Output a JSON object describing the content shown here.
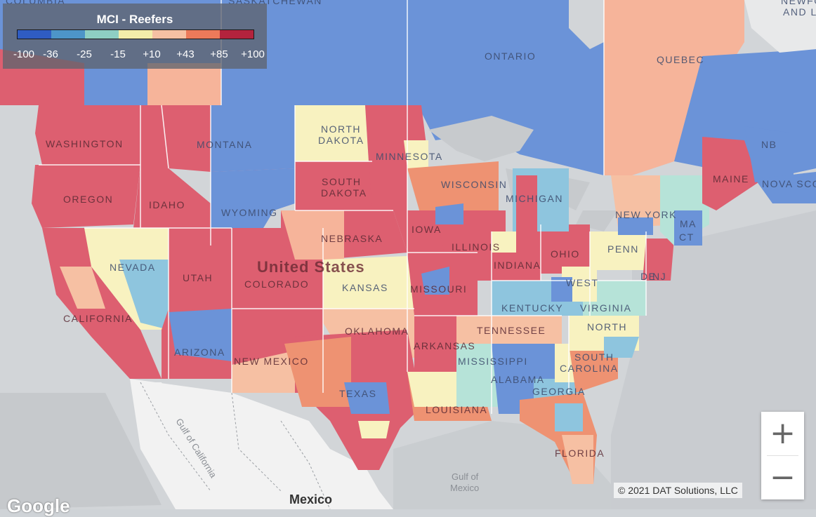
{
  "legend": {
    "title": "MCI - Reefers",
    "colors": [
      "#2f5cc2",
      "#4d95c8",
      "#8ecfc3",
      "#f4eeaa",
      "#f6c0a3",
      "#ec7a5a",
      "#b3233d"
    ],
    "ticks": [
      "-100",
      "-36",
      "-25",
      "-15",
      "+10",
      "+43",
      "+85",
      "+100"
    ]
  },
  "region_colors": {
    "deep_blue": "#6b93d8",
    "light_blue": "#8ec5de",
    "teal": "#b6e3d8",
    "yellow": "#f8f2c0",
    "peach": "#f6b49a",
    "salmon": "#ee9272",
    "red": "#dd5f70"
  },
  "labels": {
    "ontario": "ONTARIO",
    "quebec": "QUEBEC",
    "washington": "WASHINGTON",
    "oregon": "OREGON",
    "idaho": "IDAHO",
    "montana": "MONTANA",
    "wyoming": "WYOMING",
    "north_dakota_1": "NORTH",
    "north_dakota_2": "DAKOTA",
    "south_dakota_1": "SOUTH",
    "south_dakota_2": "DAKOTA",
    "minnesota": "MINNESOTA",
    "wisconsin": "WISCONSIN",
    "michigan": "MICHIGAN",
    "iowa": "IOWA",
    "nebraska": "NEBRASKA",
    "nevada": "NEVADA",
    "utah": "UTAH",
    "colorado": "COLORADO",
    "kansas": "KANSAS",
    "california": "CALIFORNIA",
    "arizona": "ARIZONA",
    "new_mexico": "NEW MEXICO",
    "oklahoma": "OKLAHOMA",
    "texas": "TEXAS",
    "missouri": "MISSOURI",
    "illinois": "ILLINOIS",
    "indiana": "INDIANA",
    "ohio": "OHIO",
    "kentucky": "KENTUCKY",
    "tennessee": "TENNESSEE",
    "arkansas": "ARKANSAS",
    "mississippi": "MISSISSIPPI",
    "louisiana": "LOUISIANA",
    "alabama": "ALABAMA",
    "georgia": "GEORGIA",
    "florida": "FLORIDA",
    "south_carolina_1": "SOUTH",
    "south_carolina_2": "CAROLINA",
    "north_carolina": "NORTH",
    "virginia": "VIRGINIA",
    "west_virginia": "WEST",
    "penn": "PENN",
    "new_york": "NEW YORK",
    "maine": "MAINE",
    "nova_scotia": "NOVA SCO",
    "nb": "NB",
    "ma": "MA",
    "ct": "CT",
    "nj": "NJ",
    "de": "DE",
    "united_states": "United States",
    "gulf_california": "Gulf of California",
    "gulf_mexico_1": "Gulf of",
    "gulf_mexico_2": "Mexico",
    "mexico": "Mexico",
    "saskatchewan": "SASKATCHEWAN",
    "colombia": "COLUMBIA",
    "newfoundland_1": "NEWFO",
    "newfoundland_2": "AND L"
  },
  "zoom": {
    "in": "+",
    "out": "−"
  },
  "copyright": "© 2021 DAT Solutions, LLC",
  "google": "Google"
}
